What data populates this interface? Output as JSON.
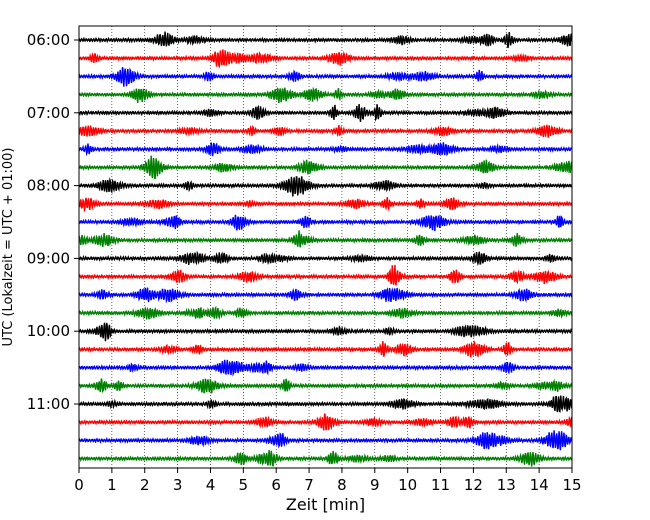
{
  "chart_data": {
    "type": "line",
    "xlabel": "Zeit  [min]",
    "ylabel": "UTC (Lokalzeit = UTC + 01:00)",
    "xlim": [
      0,
      15
    ],
    "x_ticks": [
      "0",
      "1",
      "2",
      "3",
      "4",
      "5",
      "6",
      "7",
      "8",
      "9",
      "10",
      "11",
      "12",
      "13",
      "14",
      "15"
    ],
    "y_ticks": [
      "06:00",
      "07:00",
      "08:00",
      "09:00",
      "10:00",
      "11:00"
    ],
    "trace_start_utc": "06:00",
    "trace_interval_min": 15,
    "trace_count": 24,
    "trace_colors": [
      "#000000",
      "#ff0000",
      "#0000ff",
      "#008000"
    ],
    "grid": "vertical dotted at each minute"
  }
}
